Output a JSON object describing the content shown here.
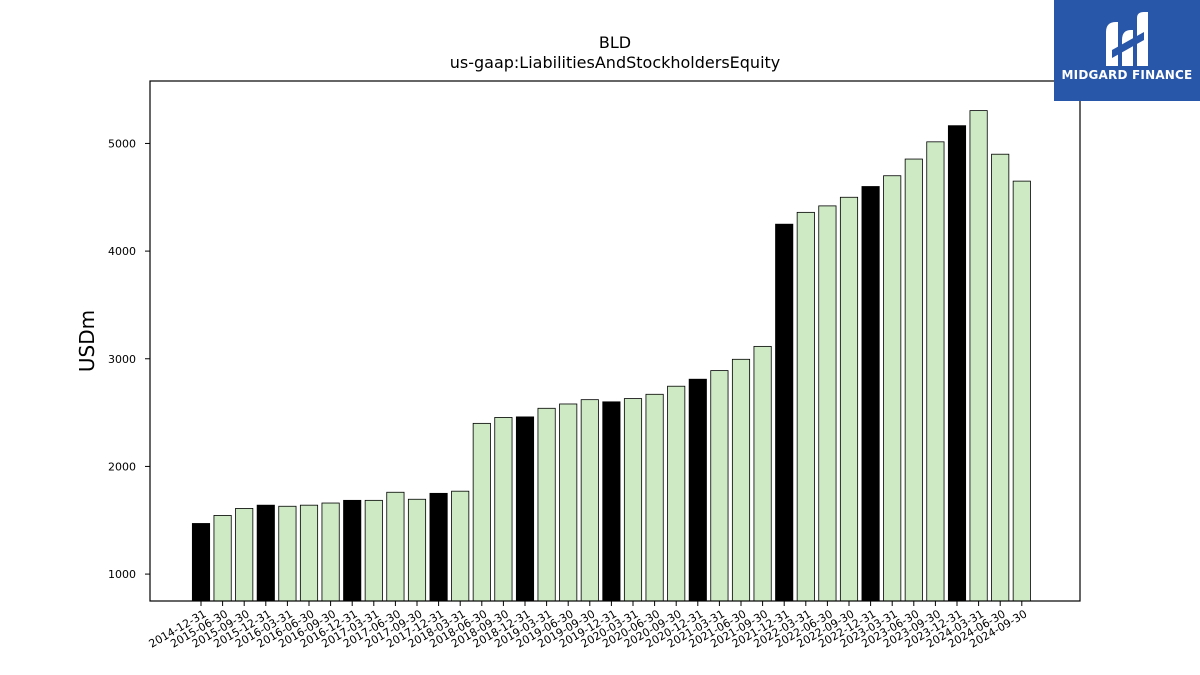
{
  "brand": {
    "name": "MIDGARD FINANCE",
    "logo_icon": "midgard-logo-icon",
    "background_color": "#2856a8"
  },
  "chart_data": {
    "type": "bar",
    "title": "BLD",
    "subtitle": "us-gaap:LiabilitiesAndStockholdersEquity",
    "xlabel": "",
    "ylabel": "USDm",
    "ylim": [
      750,
      5580
    ],
    "yticks": [
      1000,
      2000,
      3000,
      4000,
      5000
    ],
    "grid": false,
    "colors": {
      "annual": "#000000",
      "quarterly": "#cdeac4",
      "edge": "#000000"
    },
    "categories": [
      "2014-12-31",
      "2015-06-30",
      "2015-09-30",
      "2015-12-31",
      "2016-03-31",
      "2016-06-30",
      "2016-09-30",
      "2016-12-31",
      "2017-03-31",
      "2017-06-30",
      "2017-09-30",
      "2017-12-31",
      "2018-03-31",
      "2018-06-30",
      "2018-09-30",
      "2018-12-31",
      "2019-03-31",
      "2019-06-30",
      "2019-09-30",
      "2019-12-31",
      "2020-03-31",
      "2020-06-30",
      "2020-09-30",
      "2020-12-31",
      "2021-03-31",
      "2021-06-30",
      "2021-09-30",
      "2021-12-31",
      "2022-03-31",
      "2022-06-30",
      "2022-09-30",
      "2022-12-31",
      "2023-03-31",
      "2023-06-30",
      "2023-09-30",
      "2023-12-31",
      "2024-03-31",
      "2024-06-30",
      "2024-09-30"
    ],
    "values": [
      1470,
      1545,
      1610,
      1640,
      1630,
      1640,
      1660,
      1685,
      1685,
      1760,
      1695,
      1750,
      1770,
      2400,
      2455,
      2460,
      2540,
      2580,
      2620,
      2600,
      2630,
      2670,
      2745,
      2810,
      2890,
      2995,
      3115,
      4250,
      4360,
      4420,
      4500,
      4600,
      4700,
      4855,
      5015,
      5165,
      5305,
      4900,
      4650
    ],
    "is_annual": [
      true,
      false,
      false,
      true,
      false,
      false,
      false,
      true,
      false,
      false,
      false,
      true,
      false,
      false,
      false,
      true,
      false,
      false,
      false,
      true,
      false,
      false,
      false,
      true,
      false,
      false,
      false,
      true,
      false,
      false,
      false,
      true,
      false,
      false,
      false,
      true,
      false,
      false,
      false
    ]
  }
}
